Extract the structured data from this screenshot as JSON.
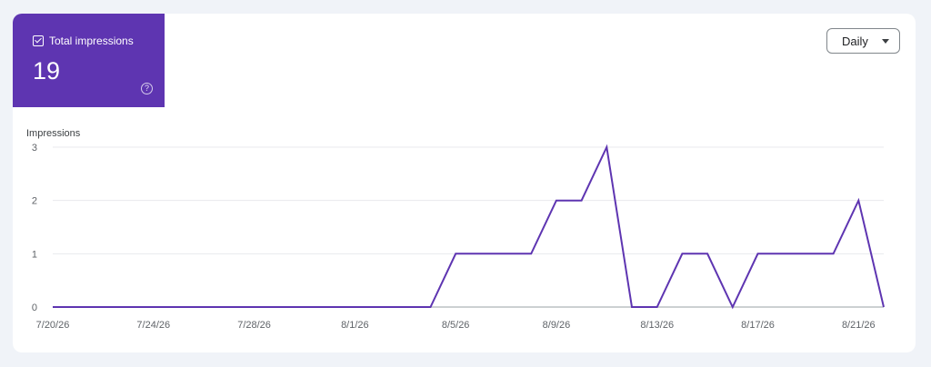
{
  "metric": {
    "label": "Total impressions",
    "value": "19",
    "help_icon": "help-circle-icon",
    "checkbox_icon": "checkbox-checked-icon",
    "color": "#5e35b1"
  },
  "controls": {
    "granularity_selected": "Daily"
  },
  "chart_data": {
    "type": "line",
    "ylabel": "Impressions",
    "xlabel": "",
    "ylim": [
      0,
      3
    ],
    "yticks": [
      "0",
      "1",
      "2",
      "3"
    ],
    "grid": true,
    "x_tick_labels": [
      "7/20/26",
      "7/24/26",
      "7/28/26",
      "8/1/26",
      "8/5/26",
      "8/9/26",
      "8/13/26",
      "8/17/26",
      "8/21/26"
    ],
    "x": [
      "7/20/26",
      "7/21/26",
      "7/22/26",
      "7/23/26",
      "7/24/26",
      "7/25/26",
      "7/26/26",
      "7/27/26",
      "7/28/26",
      "7/29/26",
      "7/30/26",
      "7/31/26",
      "8/1/26",
      "8/2/26",
      "8/3/26",
      "8/4/26",
      "8/5/26",
      "8/6/26",
      "8/7/26",
      "8/8/26",
      "8/9/26",
      "8/10/26",
      "8/11/26",
      "8/12/26",
      "8/13/26",
      "8/14/26",
      "8/15/26",
      "8/16/26",
      "8/17/26",
      "8/18/26",
      "8/19/26",
      "8/20/26",
      "8/21/26",
      "8/22/26"
    ],
    "series": [
      {
        "color": "#5e35b1",
        "values": [
          0,
          0,
          0,
          0,
          0,
          0,
          0,
          0,
          0,
          0,
          0,
          0,
          0,
          0,
          0,
          0,
          1,
          1,
          1,
          1,
          2,
          2,
          3,
          0,
          0,
          1,
          1,
          0,
          1,
          1,
          1,
          1,
          2,
          0
        ]
      }
    ]
  }
}
